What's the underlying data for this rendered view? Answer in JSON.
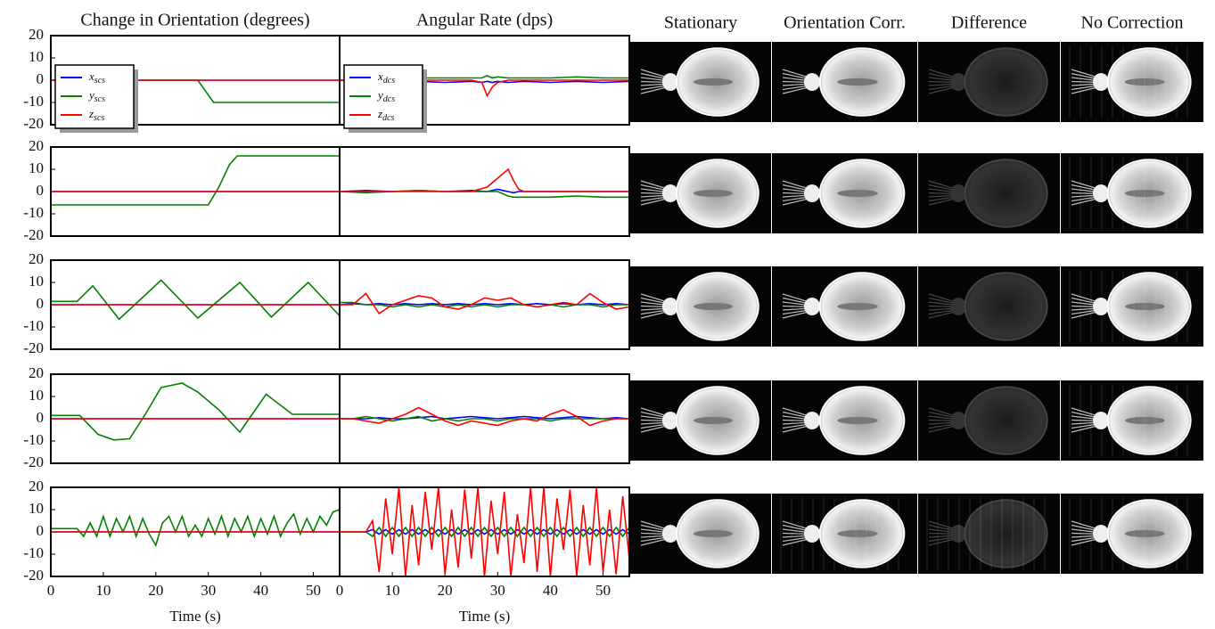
{
  "chart_data": [
    {
      "type": "line",
      "title": "Change in Orientation (degrees)",
      "legend": "upper left",
      "x": [
        0,
        28,
        31,
        55
      ],
      "xlim": [
        0,
        55
      ],
      "ylim": [
        -20,
        20
      ],
      "yticks": [
        -20,
        -10,
        0,
        10,
        20
      ],
      "series": [
        {
          "name": "x_scs",
          "color": "#0000ff",
          "values": [
            0,
            0,
            0,
            0
          ]
        },
        {
          "name": "y_scs",
          "color": "#008000",
          "values": [
            0,
            0,
            -10,
            -10
          ]
        },
        {
          "name": "z_scs",
          "color": "#ff0000",
          "values": [
            0,
            0,
            0,
            0
          ]
        }
      ]
    },
    {
      "type": "line",
      "title": "Angular Rate (dps)",
      "legend": "upper left",
      "x": [
        0,
        2.5,
        5,
        7.5,
        10,
        15,
        20,
        25,
        27,
        28,
        29,
        30,
        32,
        35,
        40,
        45,
        50,
        55
      ],
      "xlim": [
        0,
        55
      ],
      "ylim": [
        -20,
        20
      ],
      "series": [
        {
          "name": "x_dcs",
          "color": "#0000ff",
          "values": [
            0,
            -0.5,
            -1,
            -0.5,
            -1,
            -0.5,
            -1,
            -0.5,
            -1,
            -0.5,
            -1,
            -0.5,
            -1,
            -0.5,
            -1,
            -0.5,
            -1,
            -0.5
          ]
        },
        {
          "name": "y_dcs",
          "color": "#008000",
          "values": [
            0,
            0,
            0.5,
            1,
            1,
            1,
            1,
            1,
            1,
            2,
            1,
            1.5,
            1,
            1,
            1,
            1.5,
            1,
            1
          ]
        },
        {
          "name": "z_dcs",
          "color": "#ff0000",
          "values": [
            0,
            0,
            0,
            0,
            0,
            0,
            0,
            0,
            -1,
            -7,
            -3,
            -1,
            0,
            0,
            0,
            0,
            0,
            0
          ]
        }
      ]
    },
    {
      "type": "line",
      "x": [
        0,
        30,
        32,
        34,
        35.5,
        55
      ],
      "xlim": [
        0,
        55
      ],
      "ylim": [
        -20,
        20
      ],
      "yticks": [
        -20,
        -10,
        0,
        10,
        20
      ],
      "series": [
        {
          "color": "#0000ff",
          "values": [
            0,
            0,
            0,
            0,
            0,
            0
          ]
        },
        {
          "color": "#008000",
          "values": [
            -6,
            -6,
            2,
            12,
            16,
            16
          ]
        },
        {
          "color": "#ff0000",
          "values": [
            0,
            0,
            0,
            0,
            0,
            0
          ]
        }
      ]
    },
    {
      "type": "line",
      "x": [
        0,
        5,
        10,
        15,
        20,
        25,
        28,
        30,
        31,
        32,
        33,
        34,
        35,
        40,
        45,
        50,
        55
      ],
      "xlim": [
        0,
        55
      ],
      "ylim": [
        -20,
        20
      ],
      "series": [
        {
          "color": "#0000ff",
          "values": [
            0,
            0.5,
            0,
            0.5,
            0,
            0.5,
            0,
            1,
            0.5,
            0,
            -0.5,
            0,
            0,
            0,
            0,
            0,
            0
          ]
        },
        {
          "color": "#008000",
          "values": [
            0,
            -0.5,
            0,
            0.5,
            0,
            0,
            0,
            0,
            -1,
            -2,
            -2.5,
            -2.5,
            -2.5,
            -2.5,
            -2,
            -2.5,
            -2.5
          ]
        },
        {
          "color": "#ff0000",
          "values": [
            0,
            0,
            0,
            0,
            0,
            0,
            2,
            6,
            8,
            10,
            5,
            1,
            0,
            0,
            0,
            0,
            0
          ]
        }
      ]
    },
    {
      "type": "line",
      "x": [
        0,
        5,
        8,
        13,
        21,
        28,
        36,
        42,
        49,
        55
      ],
      "xlim": [
        0,
        55
      ],
      "ylim": [
        -20,
        20
      ],
      "yticks": [
        -20,
        -10,
        0,
        10,
        20
      ],
      "series": [
        {
          "color": "#0000ff",
          "values": [
            0,
            0,
            0,
            0,
            0,
            0,
            0,
            0,
            0,
            0
          ]
        },
        {
          "color": "#008000",
          "values": [
            1.5,
            1.5,
            8.5,
            -6.5,
            11,
            -6,
            10,
            -5.5,
            10,
            -5
          ]
        },
        {
          "color": "#ff0000",
          "values": [
            0,
            0,
            0,
            0,
            0,
            0,
            0,
            0,
            0,
            0
          ]
        }
      ]
    },
    {
      "type": "line",
      "x": [
        0,
        2.5,
        5,
        7.5,
        10,
        12.5,
        15,
        17.5,
        20,
        22.5,
        25,
        27.5,
        30,
        32.5,
        35,
        37.5,
        40,
        42.5,
        45,
        47.5,
        50,
        52.5,
        55
      ],
      "xlim": [
        0,
        55
      ],
      "ylim": [
        -20,
        20
      ],
      "series": [
        {
          "color": "#0000ff",
          "values": [
            0,
            0.5,
            0,
            0.5,
            0,
            0.5,
            0,
            0.5,
            0,
            0.5,
            0,
            0.5,
            0,
            0.5,
            0,
            0.5,
            0,
            0.5,
            0,
            0.5,
            0,
            0.5,
            0
          ]
        },
        {
          "color": "#008000",
          "values": [
            1,
            1,
            0,
            0,
            -1,
            0,
            -1,
            0,
            -1,
            0,
            -1,
            0,
            -1,
            0,
            0,
            -1,
            0,
            -1,
            0,
            0,
            -1,
            0,
            0
          ]
        },
        {
          "color": "#ff0000",
          "values": [
            0,
            0,
            5,
            -4,
            0,
            2,
            4,
            3,
            -1,
            -2,
            0,
            3,
            2,
            3,
            0,
            -1,
            0,
            1,
            0,
            5,
            1,
            -2,
            -1
          ]
        }
      ]
    },
    {
      "type": "line",
      "x": [
        0,
        5.5,
        9,
        12,
        15,
        18,
        21,
        25,
        28,
        32,
        36,
        41,
        46,
        55
      ],
      "xlim": [
        0,
        55
      ],
      "ylim": [
        -20,
        20
      ],
      "yticks": [
        -20,
        -10,
        0,
        10,
        20
      ],
      "series": [
        {
          "color": "#0000ff",
          "values": [
            0,
            0,
            0,
            0,
            0,
            0,
            0,
            0,
            0,
            0,
            0,
            0,
            0,
            0
          ]
        },
        {
          "color": "#008000",
          "values": [
            1.5,
            1.5,
            -7,
            -9.5,
            -9,
            2,
            14,
            16,
            12,
            4,
            -6,
            11,
            2,
            2
          ]
        },
        {
          "color": "#ff0000",
          "values": [
            0,
            0,
            0,
            0,
            0,
            0,
            0,
            0,
            0,
            0,
            0,
            0,
            0,
            0
          ]
        }
      ]
    },
    {
      "type": "line",
      "x": [
        0,
        2.5,
        5,
        7.5,
        10,
        12.5,
        15,
        17.5,
        20,
        22.5,
        25,
        27.5,
        30,
        32.5,
        35,
        37.5,
        40,
        42.5,
        45,
        47.5,
        50,
        52.5,
        55
      ],
      "xlim": [
        0,
        55
      ],
      "ylim": [
        -20,
        20
      ],
      "series": [
        {
          "color": "#0000ff",
          "values": [
            0,
            0,
            0,
            0.5,
            0,
            0,
            0.5,
            1,
            0,
            0.5,
            1,
            0.5,
            0,
            0.5,
            1,
            0.5,
            0,
            0.5,
            1,
            0.5,
            0,
            0.5,
            0
          ]
        },
        {
          "color": "#008000",
          "values": [
            0,
            0,
            1,
            0,
            -1,
            0,
            1,
            -1,
            0,
            -1,
            0,
            0,
            -1,
            0,
            0,
            0,
            -1,
            0,
            0,
            0,
            0,
            0,
            0
          ]
        },
        {
          "color": "#ff0000",
          "values": [
            0,
            0,
            -1,
            -2,
            0,
            2,
            5,
            2,
            -1,
            -3,
            -1,
            -2,
            -3,
            -1,
            0,
            -1,
            2,
            4,
            1,
            -3,
            -1,
            0,
            0
          ]
        }
      ]
    },
    {
      "type": "line",
      "x": [
        0,
        5,
        6.25,
        7.5,
        8.75,
        10,
        11.25,
        12.5,
        13.75,
        15,
        16.25,
        17.5,
        18.75,
        20,
        21.25,
        22.5,
        23.75,
        25,
        26.25,
        27.5,
        28.75,
        30,
        31.25,
        32.5,
        33.75,
        35,
        36.25,
        37.5,
        38.75,
        40,
        41.25,
        42.5,
        43.75,
        45,
        46.25,
        47.5,
        48.75,
        50,
        51.25,
        52.5,
        53.75,
        55
      ],
      "xlim": [
        0,
        55
      ],
      "ylim": [
        -20,
        20
      ],
      "yticks": [
        -20,
        -10,
        0,
        10,
        20
      ],
      "xticks": [
        0,
        10,
        20,
        30,
        40,
        50
      ],
      "xlabel": "Time (s)",
      "series": [
        {
          "color": "#0000ff",
          "values": [
            0,
            0,
            0,
            0,
            0,
            0,
            0,
            0,
            0,
            0,
            0,
            0,
            0,
            0,
            0,
            0,
            0,
            0,
            0,
            0,
            0,
            0,
            0,
            0,
            0,
            0,
            0,
            0,
            0,
            0,
            0,
            0,
            0,
            0,
            0,
            0,
            0,
            0,
            0,
            0,
            0,
            0
          ]
        },
        {
          "color": "#008000",
          "values": [
            1.5,
            1.5,
            -2,
            4,
            -2,
            7,
            -2,
            6,
            0,
            7,
            -2,
            6,
            -1,
            -6,
            4,
            7,
            0,
            7,
            -2,
            3,
            -2,
            6,
            -1,
            7,
            -2,
            6,
            0,
            7,
            -2,
            6,
            -1,
            7,
            -2,
            4,
            8,
            -1,
            6,
            0,
            7,
            3,
            9,
            10
          ]
        },
        {
          "color": "#ff0000",
          "values": [
            0,
            0,
            0,
            0,
            0,
            0,
            0,
            0,
            0,
            0,
            0,
            0,
            0,
            0,
            0,
            0,
            0,
            0,
            0,
            0,
            0,
            0,
            0,
            0,
            0,
            0,
            0,
            0,
            0,
            0,
            0,
            0,
            0,
            0,
            0,
            0,
            0,
            0,
            0,
            0,
            0,
            0
          ]
        }
      ]
    },
    {
      "type": "line",
      "x": [
        0,
        1.25,
        2.5,
        3.75,
        5,
        6.25,
        7.5,
        8.75,
        10,
        11.25,
        12.5,
        13.75,
        15,
        16.25,
        17.5,
        18.75,
        20,
        21.25,
        22.5,
        23.75,
        25,
        26.25,
        27.5,
        28.75,
        30,
        31.25,
        32.5,
        33.75,
        35,
        36.25,
        37.5,
        38.75,
        40,
        41.25,
        42.5,
        43.75,
        45,
        46.25,
        47.5,
        48.75,
        50,
        51.25,
        52.5,
        53.75,
        55
      ],
      "xlim": [
        0,
        55
      ],
      "ylim": [
        -20,
        20
      ],
      "xticks": [
        0,
        10,
        20,
        30,
        40,
        50
      ],
      "xlabel": "Time (s)",
      "series": [
        {
          "color": "#0000ff",
          "values": [
            0,
            0,
            0,
            0,
            0,
            1,
            -1,
            1,
            -1,
            1,
            -1,
            1,
            -1,
            1,
            -1,
            1,
            -1,
            1,
            -1,
            1,
            -1,
            1,
            -1,
            1,
            -1,
            1,
            -1,
            1,
            -1,
            1,
            -1,
            1,
            -1,
            1,
            -1,
            1,
            -1,
            1,
            -1,
            1,
            -1,
            1,
            -1,
            1,
            -1
          ]
        },
        {
          "color": "#008000",
          "values": [
            0,
            0,
            0,
            0,
            0,
            -2,
            2,
            -2,
            2,
            -2,
            2,
            -2,
            2,
            -2,
            2,
            -2,
            2,
            -2,
            2,
            -2,
            2,
            -2,
            2,
            -2,
            2,
            -2,
            2,
            -2,
            2,
            -2,
            2,
            -2,
            2,
            -2,
            2,
            -2,
            2,
            -2,
            2,
            -2,
            2,
            -2,
            2,
            -2,
            2
          ]
        },
        {
          "color": "#ff0000",
          "values": [
            0,
            0,
            0,
            0,
            0,
            5,
            -18,
            15,
            -10,
            20,
            -20,
            12,
            -15,
            18,
            -8,
            20,
            -19,
            10,
            -16,
            19,
            -12,
            20,
            -20,
            14,
            -10,
            18,
            -20,
            8,
            -14,
            20,
            -18,
            20,
            -20,
            15,
            -8,
            19,
            -20,
            12,
            -15,
            20,
            -18,
            10,
            -19,
            16,
            -12
          ]
        }
      ]
    }
  ],
  "image_columns": [
    "Stationary",
    "Orientation Corr.",
    "Difference",
    "No Correction"
  ]
}
